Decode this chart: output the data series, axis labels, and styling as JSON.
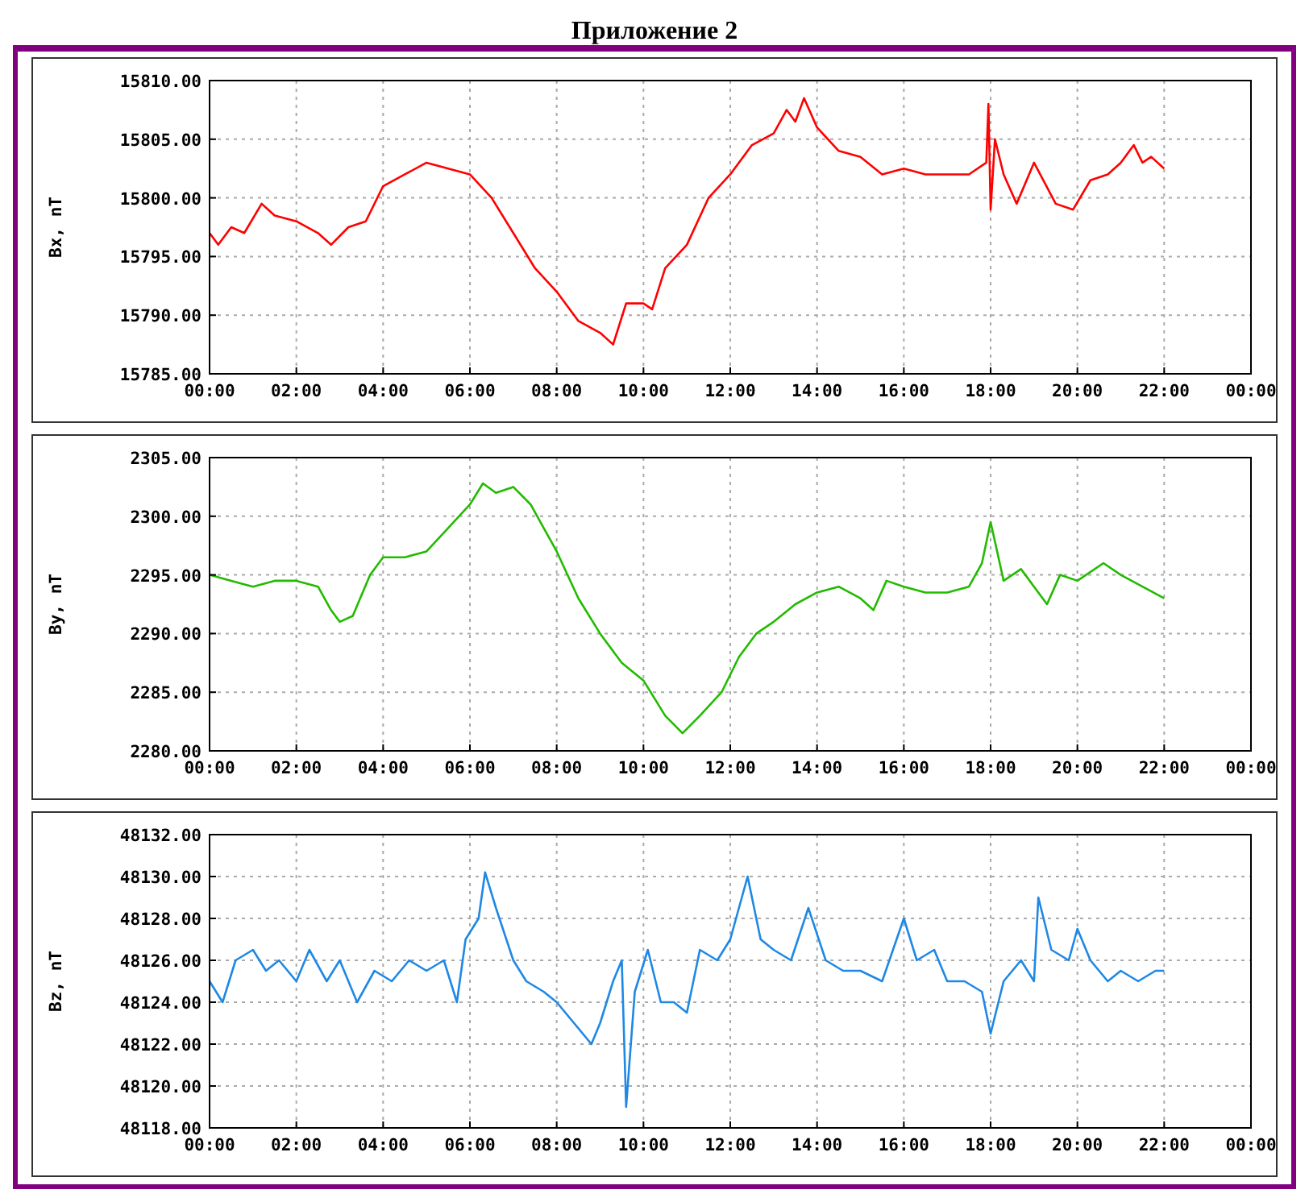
{
  "chart_data": [
    {
      "type": "line",
      "title": "Приложение 2",
      "ylabel": "Bx, nT",
      "color": "#ff0000",
      "grid": true,
      "x": [
        0,
        0.2,
        0.5,
        0.8,
        1.2,
        1.5,
        2,
        2.5,
        2.8,
        3.2,
        3.6,
        4,
        4.5,
        5,
        5.5,
        6,
        6.5,
        7,
        7.5,
        8,
        8.5,
        9,
        9.3,
        9.6,
        10,
        10.2,
        10.5,
        11,
        11.5,
        12,
        12.5,
        13,
        13.3,
        13.5,
        13.7,
        14,
        14.5,
        15,
        15.5,
        16,
        16.5,
        17,
        17.5,
        17.9,
        17.95,
        18,
        18.1,
        18.3,
        18.6,
        19,
        19.5,
        19.9,
        20.3,
        20.7,
        21,
        21.3,
        21.5,
        21.7,
        22
      ],
      "values": [
        15797,
        15796,
        15797.5,
        15797,
        15799.5,
        15798.5,
        15798,
        15797,
        15796,
        15797.5,
        15798,
        15801,
        15802,
        15803,
        15802.5,
        15802,
        15800,
        15797,
        15794,
        15792,
        15789.5,
        15788.5,
        15787.5,
        15791,
        15791,
        15790.5,
        15794,
        15796,
        15800,
        15802,
        15804.5,
        15805.5,
        15807.5,
        15806.5,
        15808.5,
        15806,
        15804,
        15803.5,
        15802,
        15802.5,
        15802,
        15802,
        15802,
        15803,
        15808,
        15799,
        15805,
        15802,
        15799.5,
        15803,
        15799.5,
        15799,
        15801.5,
        15802,
        15803,
        15804.5,
        15803,
        15803.5,
        15802.5
      ],
      "xlim": [
        0,
        24
      ],
      "xticks": [
        {
          "value": 0,
          "label": "00:00"
        },
        {
          "value": 2,
          "label": "02:00"
        },
        {
          "value": 4,
          "label": "04:00"
        },
        {
          "value": 6,
          "label": "06:00"
        },
        {
          "value": 8,
          "label": "08:00"
        },
        {
          "value": 10,
          "label": "10:00"
        },
        {
          "value": 12,
          "label": "12:00"
        },
        {
          "value": 14,
          "label": "14:00"
        },
        {
          "value": 16,
          "label": "16:00"
        },
        {
          "value": 18,
          "label": "18:00"
        },
        {
          "value": 20,
          "label": "20:00"
        },
        {
          "value": 22,
          "label": "22:00"
        },
        {
          "value": 24,
          "label": "00:00"
        }
      ],
      "ylim": [
        15785,
        15810
      ],
      "yticks": [
        {
          "value": 15785,
          "label": "15785.00"
        },
        {
          "value": 15790,
          "label": "15790.00"
        },
        {
          "value": 15795,
          "label": "15795.00"
        },
        {
          "value": 15800,
          "label": "15800.00"
        },
        {
          "value": 15805,
          "label": "15805.00"
        },
        {
          "value": 15810,
          "label": "15810.00"
        }
      ]
    },
    {
      "type": "line",
      "ylabel": "By, nT",
      "color": "#22bb00",
      "grid": true,
      "x": [
        0,
        0.5,
        1,
        1.5,
        2,
        2.5,
        2.8,
        3,
        3.3,
        3.7,
        4,
        4.5,
        5,
        5.5,
        6,
        6.3,
        6.6,
        7,
        7.4,
        7.7,
        8,
        8.5,
        9,
        9.5,
        10,
        10.5,
        10.9,
        11.3,
        11.8,
        12.2,
        12.6,
        13,
        13.5,
        14,
        14.5,
        15,
        15.3,
        15.6,
        16,
        16.5,
        17,
        17.5,
        17.8,
        18,
        18.3,
        18.7,
        19,
        19.3,
        19.6,
        20,
        20.6,
        21,
        21.5,
        22
      ],
      "values": [
        2295,
        2294.5,
        2294,
        2294.5,
        2294.5,
        2294,
        2292,
        2291,
        2291.5,
        2295,
        2296.5,
        2296.5,
        2297,
        2299,
        2301,
        2302.8,
        2302,
        2302.5,
        2301,
        2299,
        2297,
        2293,
        2290,
        2287.5,
        2286,
        2283,
        2281.5,
        2283,
        2285,
        2288,
        2290,
        2291,
        2292.5,
        2293.5,
        2294,
        2293,
        2292,
        2294.5,
        2294,
        2293.5,
        2293.5,
        2294,
        2296,
        2299.5,
        2294.5,
        2295.5,
        2294,
        2292.5,
        2295,
        2294.5,
        2296,
        2295,
        2294,
        2293
      ],
      "xlim": [
        0,
        24
      ],
      "xticks": [
        {
          "value": 0,
          "label": "00:00"
        },
        {
          "value": 2,
          "label": "02:00"
        },
        {
          "value": 4,
          "label": "04:00"
        },
        {
          "value": 6,
          "label": "06:00"
        },
        {
          "value": 8,
          "label": "08:00"
        },
        {
          "value": 10,
          "label": "10:00"
        },
        {
          "value": 12,
          "label": "12:00"
        },
        {
          "value": 14,
          "label": "14:00"
        },
        {
          "value": 16,
          "label": "16:00"
        },
        {
          "value": 18,
          "label": "18:00"
        },
        {
          "value": 20,
          "label": "20:00"
        },
        {
          "value": 22,
          "label": "22:00"
        },
        {
          "value": 24,
          "label": "00:00"
        }
      ],
      "ylim": [
        2280,
        2305
      ],
      "yticks": [
        {
          "value": 2280,
          "label": "2280.00"
        },
        {
          "value": 2285,
          "label": "2285.00"
        },
        {
          "value": 2290,
          "label": "2290.00"
        },
        {
          "value": 2295,
          "label": "2295.00"
        },
        {
          "value": 2300,
          "label": "2300.00"
        },
        {
          "value": 2305,
          "label": "2305.00"
        }
      ]
    },
    {
      "type": "line",
      "ylabel": "Bz, nT",
      "color": "#1e88e5",
      "grid": true,
      "x": [
        0,
        0.3,
        0.6,
        1,
        1.3,
        1.6,
        2,
        2.3,
        2.7,
        3,
        3.4,
        3.8,
        4.2,
        4.6,
        5,
        5.4,
        5.7,
        5.9,
        6.2,
        6.35,
        6.6,
        7,
        7.3,
        7.7,
        8,
        8.4,
        8.8,
        9,
        9.3,
        9.5,
        9.6,
        9.8,
        10.1,
        10.4,
        10.7,
        11,
        11.3,
        11.7,
        12,
        12.4,
        12.7,
        13,
        13.4,
        13.8,
        14.2,
        14.6,
        15,
        15.5,
        16,
        16.3,
        16.7,
        17,
        17.4,
        17.8,
        18,
        18.3,
        18.7,
        19,
        19.1,
        19.4,
        19.8,
        20,
        20.3,
        20.7,
        21,
        21.4,
        21.8,
        22
      ],
      "values": [
        48125,
        48124,
        48126,
        48126.5,
        48125.5,
        48126,
        48125,
        48126.5,
        48125,
        48126,
        48124,
        48125.5,
        48125,
        48126,
        48125.5,
        48126,
        48124,
        48127,
        48128,
        48130.2,
        48128.5,
        48126,
        48125,
        48124.5,
        48124,
        48123,
        48122,
        48123,
        48125,
        48126,
        48119,
        48124.5,
        48126.5,
        48124,
        48124,
        48123.5,
        48126.5,
        48126,
        48127,
        48130,
        48127,
        48126.5,
        48126,
        48128.5,
        48126,
        48125.5,
        48125.5,
        48125,
        48128,
        48126,
        48126.5,
        48125,
        48125,
        48124.5,
        48122.5,
        48125,
        48126,
        48125,
        48129,
        48126.5,
        48126,
        48127.5,
        48126,
        48125,
        48125.5,
        48125,
        48125.5,
        48125.5
      ],
      "xlim": [
        0,
        24
      ],
      "xticks": [
        {
          "value": 0,
          "label": "00:00"
        },
        {
          "value": 2,
          "label": "02:00"
        },
        {
          "value": 4,
          "label": "04:00"
        },
        {
          "value": 6,
          "label": "06:00"
        },
        {
          "value": 8,
          "label": "08:00"
        },
        {
          "value": 10,
          "label": "10:00"
        },
        {
          "value": 12,
          "label": "12:00"
        },
        {
          "value": 14,
          "label": "14:00"
        },
        {
          "value": 16,
          "label": "16:00"
        },
        {
          "value": 18,
          "label": "18:00"
        },
        {
          "value": 20,
          "label": "20:00"
        },
        {
          "value": 22,
          "label": "22:00"
        },
        {
          "value": 24,
          "label": "00:00"
        }
      ],
      "ylim": [
        48118,
        48132
      ],
      "yticks": [
        {
          "value": 48118,
          "label": "48118.00"
        },
        {
          "value": 48120,
          "label": "48120.00"
        },
        {
          "value": 48122,
          "label": "48122.00"
        },
        {
          "value": 48124,
          "label": "48124.00"
        },
        {
          "value": 48126,
          "label": "48126.00"
        },
        {
          "value": 48128,
          "label": "48128.00"
        },
        {
          "value": 48130,
          "label": "48130.00"
        },
        {
          "value": 48132,
          "label": "48132.00"
        }
      ]
    }
  ]
}
